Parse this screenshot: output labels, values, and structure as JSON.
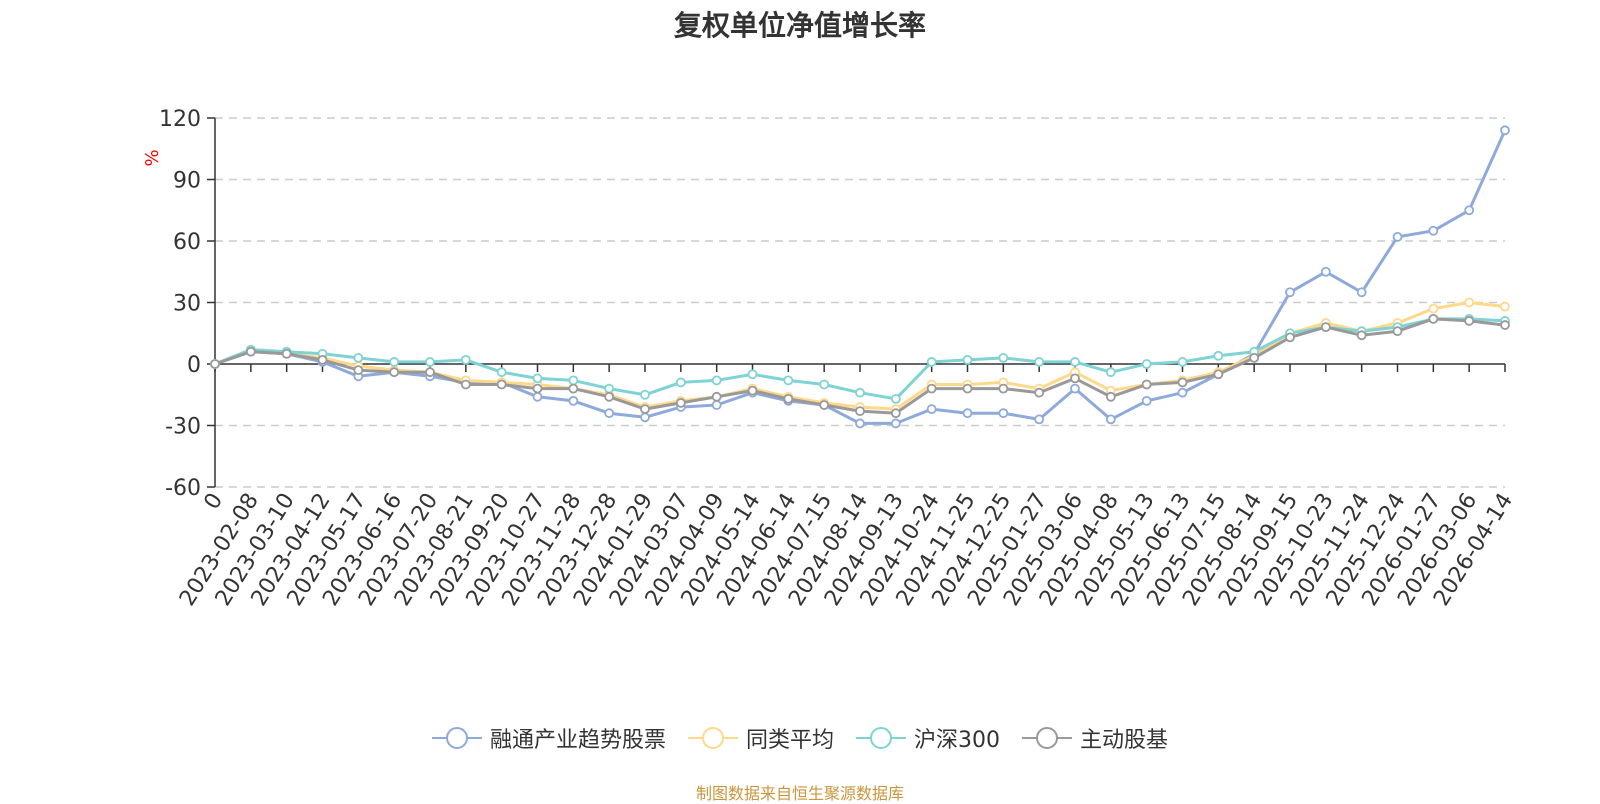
{
  "chart_data": {
    "type": "line",
    "title": "复权单位净值增长率",
    "ylabel": "%",
    "ylim": [
      -60,
      120
    ],
    "yticks": [
      120,
      90,
      60,
      30,
      0,
      -30,
      -60
    ],
    "grid": true,
    "legend_position": "bottom",
    "x": [
      "0",
      "2023-02-08",
      "2023-03-10",
      "2023-04-12",
      "2023-05-17",
      "2023-06-16",
      "2023-07-20",
      "2023-08-21",
      "2023-09-20",
      "2023-10-27",
      "2023-11-28",
      "2023-12-28",
      "2024-01-29",
      "2024-03-07",
      "2024-04-09",
      "2024-05-14",
      "2024-06-14",
      "2024-07-15",
      "2024-08-14",
      "2024-09-13",
      "2024-10-24",
      "2024-11-25",
      "2024-12-25",
      "2025-01-27",
      "2025-03-06",
      "2025-04-08",
      "2025-05-13",
      "2025-06-13",
      "2025-07-15",
      "2025-08-14",
      "2025-09-15",
      "2025-10-23",
      "2025-11-24",
      "2025-12-24",
      "2026-01-27",
      "2026-03-06",
      "2026-04-14"
    ],
    "series": [
      {
        "name": "融通产业趋势股票",
        "color": "#8eaadb",
        "values": [
          0,
          6,
          5,
          1,
          -6,
          -4,
          -6,
          -9,
          -9,
          -16,
          -18,
          -24,
          -26,
          -21,
          -20,
          -14,
          -18,
          -20,
          -29,
          -29,
          -22,
          -24,
          -24,
          -27,
          -12,
          -27,
          -18,
          -14,
          -5,
          5,
          35,
          45,
          35,
          62,
          65,
          75,
          114
        ]
      },
      {
        "name": "同类平均",
        "color": "#ffd88a",
        "values": [
          0,
          7,
          5,
          3,
          -1,
          -3,
          -4,
          -8,
          -9,
          -10,
          -12,
          -15,
          -21,
          -18,
          -16,
          -12,
          -16,
          -19,
          -21,
          -22,
          -10,
          -10,
          -9,
          -12,
          -4,
          -13,
          -10,
          -8,
          -4,
          4,
          15,
          20,
          16,
          20,
          27,
          30,
          28
        ]
      },
      {
        "name": "沪深300",
        "color": "#7fd3d3",
        "values": [
          0,
          7,
          6,
          5,
          3,
          1,
          1,
          2,
          -4,
          -7,
          -8,
          -12,
          -15,
          -9,
          -8,
          -5,
          -8,
          -10,
          -14,
          -17,
          1,
          2,
          3,
          1,
          1,
          -4,
          0,
          1,
          4,
          6,
          15,
          18,
          16,
          18,
          22,
          22,
          21
        ]
      },
      {
        "name": "主动股基",
        "color": "#999999",
        "values": [
          0,
          6,
          5,
          2,
          -3,
          -4,
          -4,
          -10,
          -10,
          -12,
          -12,
          -16,
          -22,
          -19,
          -16,
          -13,
          -17,
          -20,
          -23,
          -24,
          -12,
          -12,
          -12,
          -14,
          -7,
          -16,
          -10,
          -9,
          -5,
          3,
          13,
          18,
          14,
          16,
          22,
          21,
          19
        ]
      }
    ]
  },
  "source_note": "制图数据来自恒生聚源数据库",
  "source_note_color": "#c8963c"
}
